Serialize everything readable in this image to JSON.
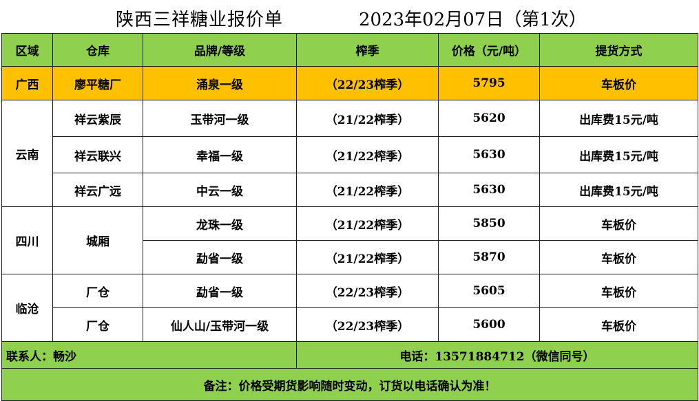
{
  "title": {
    "main": "陕西三祥糖业报价单",
    "date": "2023年02月07日（第1次）"
  },
  "headers": [
    "区域",
    "仓库",
    "品牌/等级",
    "榨季",
    "价格（元/吨）",
    "提货方式"
  ],
  "rows": [
    {
      "region": "广西",
      "warehouse": "廖平糖厂",
      "brand": "涌泉一级",
      "season": "（22/23榨季）",
      "price": "5795",
      "delivery": "车板价"
    },
    {
      "region": "云南",
      "warehouse": "祥云紫辰",
      "brand": "玉带河一级",
      "season": "（21/22榨季）",
      "price": "5620",
      "delivery": "出库费15元/吨"
    },
    {
      "region": "",
      "warehouse": "祥云联兴",
      "brand": "幸福一级",
      "season": "（21/22榨季）",
      "price": "5630",
      "delivery": "出库费15元/吨"
    },
    {
      "region": "",
      "warehouse": "祥云广远",
      "brand": "中云一级",
      "season": "（21/22榨季）",
      "price": "5630",
      "delivery": "出库费15元/吨"
    },
    {
      "region": "四川",
      "warehouse": "城厢",
      "brand": "龙珠一级",
      "season": "（21/22榨季）",
      "price": "5850",
      "delivery": "车板价"
    },
    {
      "region": "",
      "warehouse": "",
      "brand": "勐省一级",
      "season": "（21/22榨季）",
      "price": "5870",
      "delivery": "车板价"
    },
    {
      "region": "临沧",
      "warehouse": "厂仓",
      "brand": "勐省一级",
      "season": "（22/23榨季）",
      "price": "5605",
      "delivery": "车板价"
    },
    {
      "region": "",
      "warehouse": "厂仓",
      "brand": "仙人山/玉带河一级",
      "season": "（22/23榨季）",
      "price": "5600",
      "delivery": "车板价"
    }
  ],
  "footer": {
    "contact": "联系人：畅沙",
    "phone": "电话：13571884712（微信同号）",
    "note": "备注：价格受期货影响随时变动，订货以电话确认为准！"
  }
}
